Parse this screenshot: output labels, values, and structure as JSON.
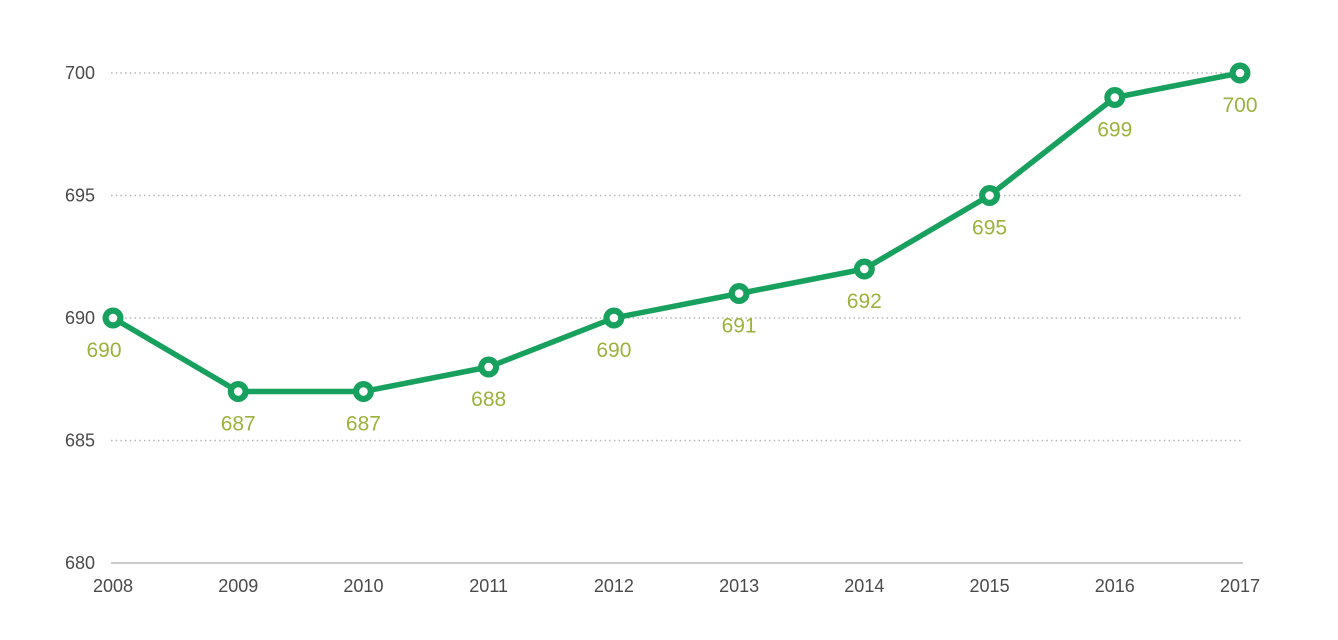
{
  "chart_data": {
    "type": "line",
    "title": "",
    "xlabel": "",
    "ylabel": "",
    "categories": [
      "2008",
      "2009",
      "2010",
      "2011",
      "2012",
      "2013",
      "2014",
      "2015",
      "2016",
      "2017"
    ],
    "series": [
      {
        "name": "value",
        "values": [
          690,
          687,
          687,
          688,
          690,
          691,
          692,
          695,
          699,
          700
        ]
      }
    ],
    "data_labels": [
      "690",
      "687",
      "687",
      "688",
      "690",
      "691",
      "692",
      "695",
      "699",
      "700"
    ],
    "yticks": [
      680,
      685,
      690,
      695,
      700
    ],
    "ylim": [
      680,
      702
    ],
    "grid": "horizontal-dotted",
    "legend_position": "none",
    "colors": {
      "line": "#18a05e",
      "marker_ring": "#18a05e",
      "marker_center": "#ffffff",
      "data_label": "#9ab33c",
      "axis_label": "#4a4a4a",
      "grid_line": "#b5b5b5",
      "baseline": "#aaaaaa"
    }
  }
}
